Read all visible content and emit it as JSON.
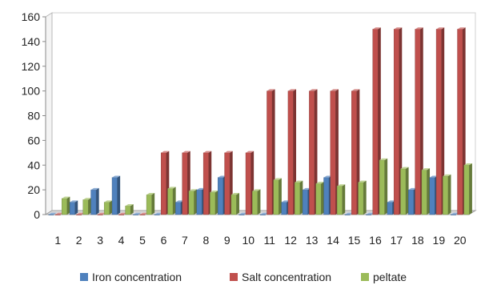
{
  "chart_data": {
    "type": "bar",
    "title": "",
    "xlabel": "",
    "ylabel": "",
    "ylim": [
      0,
      160
    ],
    "yticks": [
      0,
      20,
      40,
      60,
      80,
      100,
      120,
      140,
      160
    ],
    "grid": false,
    "legend_position": "bottom",
    "categories": [
      "1",
      "2",
      "3",
      "4",
      "5",
      "6",
      "7",
      "8",
      "9",
      "10",
      "11",
      "12",
      "13",
      "14",
      "15",
      "16",
      "17",
      "18",
      "19",
      "20"
    ],
    "series": [
      {
        "name": "Iron concentration",
        "color": "#4F81BD",
        "values": [
          0,
          10,
          20,
          30,
          0,
          0,
          10,
          20,
          30,
          0,
          0,
          10,
          20,
          30,
          0,
          0,
          10,
          20,
          30,
          0
        ]
      },
      {
        "name": "Salt concentration",
        "color": "#C0504D",
        "values": [
          0,
          0,
          0,
          0,
          0,
          50,
          50,
          50,
          50,
          50,
          100,
          100,
          100,
          100,
          100,
          150,
          150,
          150,
          150,
          150
        ]
      },
      {
        "name": "peltate",
        "color": "#9BBB59",
        "values": [
          13,
          12,
          10,
          7,
          16,
          21,
          19,
          18,
          16,
          19,
          28,
          26,
          25,
          23,
          26,
          44,
          37,
          36,
          31,
          40
        ]
      }
    ]
  }
}
